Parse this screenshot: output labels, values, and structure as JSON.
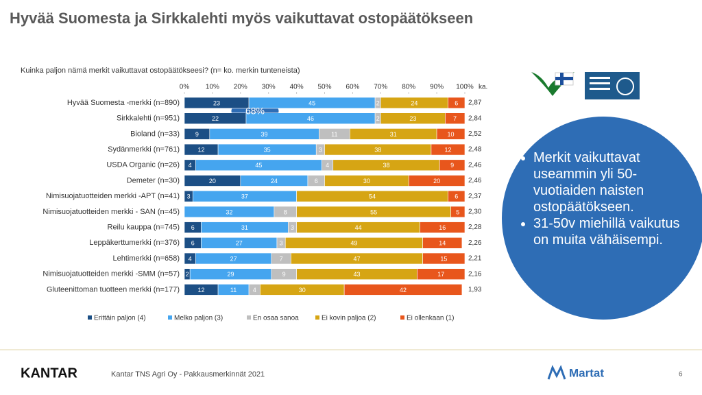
{
  "slide_title": "Hyvää Suomesta ja Sirkkalehti myös vaikuttavat ostopäätökseen",
  "chart_data": {
    "type": "stacked-bar-horizontal",
    "subtitle": "Kuinka paljon nämä merkit vaikuttavat ostopäätökseesi? (n= ko. merkin tunteneista)",
    "categories": [
      "Hyvää Suomesta -merkki (n=890)",
      "Sirkkalehti (n=951)",
      "Bioland (n=33)",
      "Sydänmerkki (n=761)",
      "USDA Organic (n=26)",
      "Demeter (n=30)",
      "Nimisuojatuotteiden merkki -APT (n=41)",
      "Nimisuojatuotteiden merkki - SAN (n=45)",
      "Reilu kauppa (n=745)",
      "Leppäkerttumerkki (n=376)",
      "Lehtimerkki (n=658)",
      "Nimisuojatuotteiden merkki -SMM (n=57)",
      "Gluteenittoman tuotteen merkki (n=177)"
    ],
    "series": [
      {
        "name": "Erittäin paljon (4)",
        "color": "#1c4f85",
        "values": [
          23,
          22,
          9,
          12,
          4,
          20,
          3,
          0,
          6,
          6,
          4,
          2,
          12
        ]
      },
      {
        "name": "Melko paljon (3)",
        "color": "#45a5ef",
        "values": [
          45,
          46,
          39,
          35,
          45,
          24,
          37,
          32,
          31,
          27,
          27,
          29,
          11
        ]
      },
      {
        "name": "En osaa sanoa",
        "color": "#bfbfbf",
        "values": [
          2,
          2,
          11,
          3,
          4,
          6,
          0,
          8,
          3,
          3,
          7,
          9,
          4
        ]
      },
      {
        "name": "Ei kovin paljoa (2)",
        "color": "#d6a514",
        "values": [
          24,
          23,
          31,
          38,
          38,
          30,
          54,
          55,
          44,
          49,
          47,
          43,
          30
        ]
      },
      {
        "name": "Ei ollenkaan (1)",
        "color": "#e8561c",
        "values": [
          6,
          7,
          10,
          12,
          9,
          20,
          6,
          5,
          16,
          14,
          15,
          17,
          42
        ]
      }
    ],
    "averages_header": "ka.",
    "averages": [
      "2,87",
      "2,84",
      "2,52",
      "2,48",
      "2,46",
      "2,46",
      "2,37",
      "2,30",
      "2,28",
      "2,26",
      "2,21",
      "2,16",
      "1,93"
    ],
    "xlim": [
      0,
      100
    ],
    "xticks": [
      {
        "value": 0,
        "label": "0%"
      },
      {
        "value": 10,
        "label": "10%"
      },
      {
        "value": 20,
        "label": "20%"
      },
      {
        "value": 30,
        "label": "30%"
      },
      {
        "value": 40,
        "label": "40%"
      },
      {
        "value": 50,
        "label": "50%"
      },
      {
        "value": 60,
        "label": "60%"
      },
      {
        "value": 70,
        "label": "70%"
      },
      {
        "value": 80,
        "label": "80%"
      },
      {
        "value": 90,
        "label": "90%"
      },
      {
        "value": 100,
        "label": "100%"
      }
    ],
    "annotation": "68%"
  },
  "bullets": [
    "Merkit vaikuttavat useammin yli 50-vuotiaiden naisten ostopäätökseen.",
    "31-50v miehillä vaikutus on muita vähäisempi."
  ],
  "footer": {
    "brand": "KANTAR",
    "source": "Kantar TNS Agri Oy - Pakkausmerkinnät 2021",
    "partner": "Martat",
    "page": "6"
  }
}
